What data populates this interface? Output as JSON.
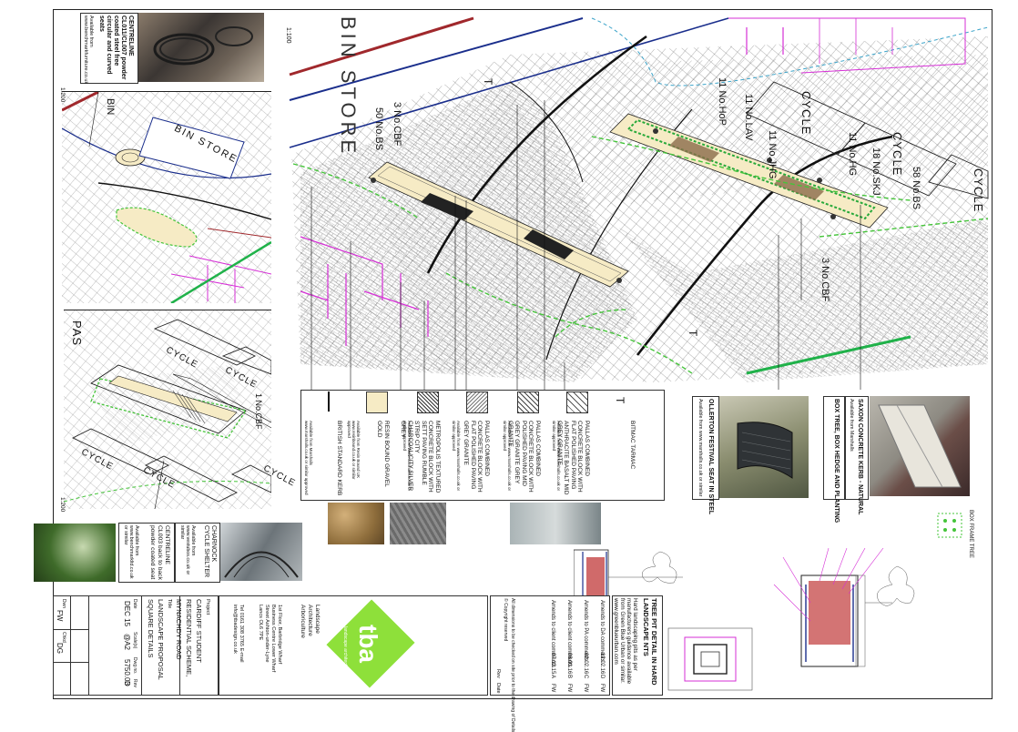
{
  "scale": {
    "main": "1:100",
    "inset_top": "1:200",
    "inset_bottom": "1:200"
  },
  "plan_labels": {
    "bin_store_main": "BIN STORE",
    "bin_store_inset": "BIN STORE",
    "bin_inset_short": "BIN",
    "cycle": "CYCLE",
    "pass": "PAS",
    "bs50": "50 No.BS",
    "cbf3_a": "3 No.CBF",
    "cbf3_b": "3 No.CBF",
    "hop11": "11 No.HoP",
    "lav11": "11 No.LAV",
    "jhg11": "11 No.JHG",
    "hg11": "11 No.HG",
    "skj18": "18 No.SKJ",
    "bs58": "58 No.BS",
    "cbf1": "1 No.CBF",
    "t1": "T",
    "t2": "T"
  },
  "products": {
    "centreline_seat_top": {
      "title": "CENTRELINE CL011/CL007 powder coated steel free circular and curved seats",
      "note": "Available from www.benchmarkfurniture.co.uk"
    },
    "centreline_seat_bottom": {
      "title": "CENTRELINE CL003 back to back powder coated seat",
      "note": "Available from www.benchmarkltd.co.uk or similar"
    },
    "cycle_shelter": {
      "title": "CHARNOCK CYCLE SHELTER",
      "note": "Available from www.vestubos.co.uk or similar"
    },
    "ollerton_seat": {
      "title": "OLLERTON FESTIVAL SEAT IN STEEL",
      "note": "Available from www.marshalls.co.uk or similar"
    },
    "box_hedge": {
      "title": "BOX TREE, BOX HEDGE AND PLANTING"
    },
    "saxon_kerb": {
      "title": "SAXON CONCRETE KERB - NATURAL",
      "note": "Available from Marshalls"
    },
    "box_frame_tree": {
      "title": "BOX FRAME TREE"
    }
  },
  "legend": [
    {
      "label": "BITMAC TARMAC",
      "note": "",
      "symbol": "T"
    },
    {
      "label": "PALLAS COMBINED CONCRETE BLOCK WITH FLAT POLISHED PAVING ANTHRACITE BASALT MID GREY GRANITE",
      "note": "Available from www.marshalls.co.uk or similar approved"
    },
    {
      "label": "PALLAS COMBINED CONCRETE BLOCK WITH POLISHED PAVING MID GREY GRANITE GREY GRANITE",
      "note": "Available from www.marshalls.co.uk or similar approved"
    },
    {
      "label": "PALLAS COMBINED CONCRETE BLOCK WITH FLAT POLISHED PAVING GREY GRANITE",
      "note": "Available from www.marshalls.co.uk or similar approved"
    },
    {
      "label": "METROPOLIS TEXTURED CONCRETE BLOCK WITH SETT PAVING RUMBLE STRIP CITY CHARCOAL/CITY SILVER GREY",
      "note": "Available from www.marshalls.co.uk or similar approved"
    },
    {
      "label": "RESIN BOUND GRAVEL GOLD",
      "note": "Available from Resin Bound UK www.resinbound.co.uk or similar approved"
    },
    {
      "label": "BRITISH STANDARD KERB",
      "note": "Available from Marshalls www.marshalls.co.uk or similar approved"
    }
  ],
  "tree_pit": {
    "title": "TREE PIT DETAIL IN HARD LANDSCAPE NTS",
    "body": "Hard landscaping pits as per manufacturers guidance available from Green Blue Urban or similar. www.greenblueurban.com"
  },
  "revisions": [
    {
      "text": "Amends to DA comments",
      "date": "12.02.16",
      "rev": "D",
      "by": "FW"
    },
    {
      "text": "Amends to PA comments",
      "date": "02.02.16",
      "rev": "C",
      "by": "FW"
    },
    {
      "text": "Amends to client comments",
      "date": "08.01.16",
      "rev": "B",
      "by": "FW"
    },
    {
      "text": "Amends to client comments",
      "date": "07.12.15",
      "rev": "A",
      "by": "FW"
    }
  ],
  "revision_notes": {
    "line1": "All dimensions to be checked on site prior to the drawing of Details",
    "line2": "© Copyright reserved",
    "rev_head": "Rev",
    "date_head": "Date"
  },
  "company": {
    "logo": "tba",
    "tagline": "landscape architecture",
    "discipline": "Landscape Architecture Arboriculture",
    "address": "1st Floor, Barbridge Wharf Business Centre Lower Wharf Street Ashton-under-Lyne Lancs OL6 7PE",
    "contact": "Tel 0161 308 3765 E-mail info@tbadesign.co.uk"
  },
  "title_block": {
    "project_label": "Project",
    "project": "CARDIFF STUDENT RESIDENTIAL SCHEME, MYNACHDY ROAD",
    "title_label": "Title",
    "title": "LANDSCAPE PROPOSAL SQUARE DETAILS",
    "date_label": "Date",
    "date": "DEC 15",
    "scale_label": "Scale(s)",
    "scale": "@A2",
    "dwg_label": "Dwg no.",
    "dwg": "5750.03",
    "rev_label": "Rev",
    "rev": "D",
    "drawn_label": "Dwn",
    "drawn": "FW",
    "checked_label": "Chkd",
    "checked": "DG"
  },
  "colors": {
    "green_accent": "#8ee03a",
    "brick": "#a0282c",
    "navy": "#1a2e8c",
    "magenta": "#d62fd6",
    "hedge": "#27a93a",
    "resin": "#f6ebc5"
  }
}
